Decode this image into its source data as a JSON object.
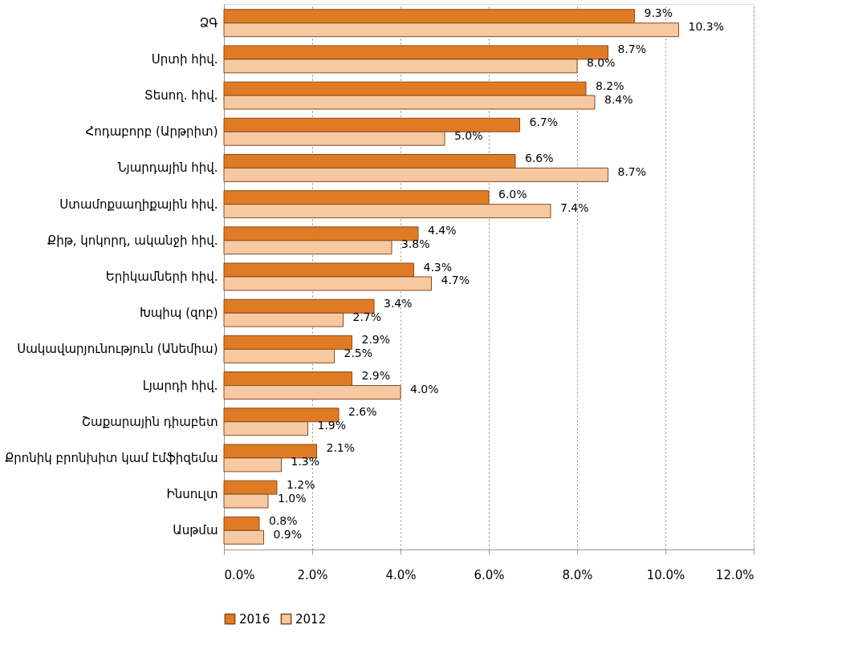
{
  "chart_data": {
    "type": "bar",
    "orientation": "horizontal",
    "categories": [
      "ՁԳ",
      "Սրտի հիվ.",
      "Տեսող. հիվ.",
      "Հոդաբորբ (Արթրիտ)",
      "Նյարդային  հիվ.",
      "Ստամոքսաղիքային հիվ.",
      "Քիթ, կոկորդ, ականջի հիվ.",
      "Երիկամների հիվ.",
      "Խպիպ (զոբ)",
      "Սակավարյունություն (Անեմիա)",
      "Լյարդի հիվ.",
      "Շաքարային դիաբետ",
      "Քրոնիկ բրոնխիտ կամ էմֆիզեմա",
      "Ինսուլտ",
      "Ասթմա"
    ],
    "series": [
      {
        "name": "2016",
        "color": "#e07b25",
        "values": [
          9.3,
          8.7,
          8.2,
          6.7,
          6.6,
          6.0,
          4.4,
          4.3,
          3.4,
          2.9,
          2.9,
          2.6,
          2.1,
          1.2,
          0.8
        ],
        "value_labels": [
          "9.3%",
          "8.7%",
          "8.2%",
          "6.7%",
          "6.6%",
          "6.0%",
          "4.4%",
          "4.3%",
          "3.4%",
          "2.9%",
          "2.9%",
          "2.6%",
          "2.1%",
          "1.2%",
          "0.8%"
        ]
      },
      {
        "name": "2012",
        "color": "#f6c9a2",
        "values": [
          10.3,
          8.0,
          8.4,
          5.0,
          8.7,
          7.4,
          3.8,
          4.7,
          2.7,
          2.5,
          4.0,
          1.9,
          1.3,
          1.0,
          0.9
        ],
        "value_labels": [
          "10.3%",
          "8.0%",
          "8.4%",
          "5.0%",
          "8.7%",
          "7.4%",
          "3.8%",
          "4.7%",
          "2.7%",
          "2.5%",
          "4.0%",
          "1.9%",
          "1.3%",
          "1.0%",
          "0.9%"
        ]
      }
    ],
    "xlim": [
      0,
      12
    ],
    "xticks": [
      {
        "value": 0,
        "label": "0.0%"
      },
      {
        "value": 2,
        "label": "2.0%"
      },
      {
        "value": 4,
        "label": "4.0%"
      },
      {
        "value": 6,
        "label": "6.0%"
      },
      {
        "value": 8,
        "label": "8.0%"
      },
      {
        "value": 10,
        "label": "10.0%"
      },
      {
        "value": 12,
        "label": "12.0%"
      }
    ],
    "grid": "x",
    "legend": "bottom"
  }
}
